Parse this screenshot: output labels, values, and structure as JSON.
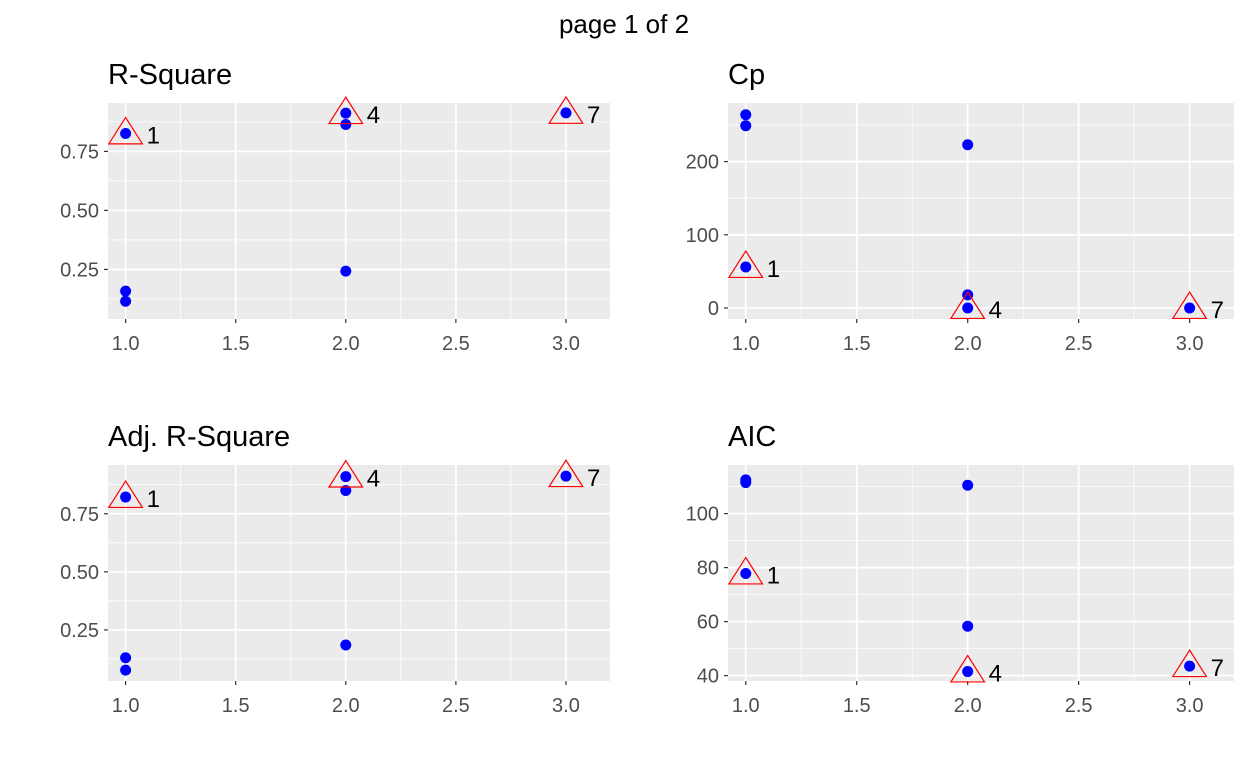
{
  "page_label": "page 1 of 2",
  "colors": {
    "panel_background": "#ebebeb",
    "grid": "#ffffff",
    "point": "#0000ff",
    "marker": "#ff0000",
    "text": "#000000",
    "tick_text": "#4d4d4d"
  },
  "chart_data": [
    {
      "type": "scatter",
      "title": "R-Square",
      "xlabel": "",
      "ylabel": "",
      "xlim": [
        0.92,
        3.2
      ],
      "ylim": [
        0.04,
        0.955
      ],
      "xticks": [
        1.0,
        1.5,
        2.0,
        2.5,
        3.0
      ],
      "xtick_labels": [
        "1.0",
        "1.5",
        "2.0",
        "2.5",
        "3.0"
      ],
      "yticks": [
        0.25,
        0.5,
        0.75
      ],
      "ytick_labels": [
        "0.25",
        "0.50",
        "0.75"
      ],
      "grid": true,
      "points": [
        [
          1,
          0.826
        ],
        [
          1,
          0.158
        ],
        [
          1,
          0.115
        ],
        [
          2,
          0.912
        ],
        [
          2,
          0.864
        ],
        [
          2,
          0.243
        ],
        [
          3,
          0.913
        ]
      ],
      "highlights": [
        {
          "x": 1,
          "y": 0.826,
          "label": "1"
        },
        {
          "x": 2,
          "y": 0.912,
          "label": "4"
        },
        {
          "x": 3,
          "y": 0.913,
          "label": "7"
        }
      ]
    },
    {
      "type": "scatter",
      "title": "Cp",
      "xlabel": "",
      "ylabel": "",
      "xlim": [
        0.92,
        3.2
      ],
      "ylim": [
        -15,
        280
      ],
      "xticks": [
        1.0,
        1.5,
        2.0,
        2.5,
        3.0
      ],
      "xtick_labels": [
        "1.0",
        "1.5",
        "2.0",
        "2.5",
        "3.0"
      ],
      "yticks": [
        0,
        100,
        200
      ],
      "ytick_labels": [
        "0",
        "100",
        "200"
      ],
      "grid": true,
      "points": [
        [
          1,
          264
        ],
        [
          1,
          249
        ],
        [
          1,
          56
        ],
        [
          2,
          223
        ],
        [
          2,
          18
        ],
        [
          2,
          0
        ],
        [
          3,
          0
        ]
      ],
      "highlights": [
        {
          "x": 1,
          "y": 56,
          "label": "1"
        },
        {
          "x": 2,
          "y": 0,
          "label": "4"
        },
        {
          "x": 3,
          "y": 0,
          "label": "7"
        }
      ]
    },
    {
      "type": "scatter",
      "title": "Adj. R-Square",
      "xlabel": "",
      "ylabel": "",
      "xlim": [
        0.92,
        3.2
      ],
      "ylim": [
        0.03,
        0.96
      ],
      "xticks": [
        1.0,
        1.5,
        2.0,
        2.5,
        3.0
      ],
      "xtick_labels": [
        "1.0",
        "1.5",
        "2.0",
        "2.5",
        "3.0"
      ],
      "yticks": [
        0.25,
        0.5,
        0.75
      ],
      "ytick_labels": [
        "0.25",
        "0.50",
        "0.75"
      ],
      "grid": true,
      "points": [
        [
          1,
          0.822
        ],
        [
          1,
          0.13
        ],
        [
          1,
          0.077
        ],
        [
          2,
          0.91
        ],
        [
          2,
          0.85
        ],
        [
          2,
          0.185
        ],
        [
          3,
          0.912
        ]
      ],
      "highlights": [
        {
          "x": 1,
          "y": 0.822,
          "label": "1"
        },
        {
          "x": 2,
          "y": 0.91,
          "label": "4"
        },
        {
          "x": 3,
          "y": 0.912,
          "label": "7"
        }
      ]
    },
    {
      "type": "scatter",
      "title": "AIC",
      "xlabel": "",
      "ylabel": "",
      "xlim": [
        0.92,
        3.2
      ],
      "ylim": [
        38,
        118
      ],
      "xticks": [
        1.0,
        1.5,
        2.0,
        2.5,
        3.0
      ],
      "xtick_labels": [
        "1.0",
        "1.5",
        "2.0",
        "2.5",
        "3.0"
      ],
      "yticks": [
        40,
        60,
        80,
        100
      ],
      "ytick_labels": [
        "40",
        "60",
        "80",
        "100"
      ],
      "grid": true,
      "points": [
        [
          1,
          112.5
        ],
        [
          1,
          111.5
        ],
        [
          1,
          77.8
        ],
        [
          2,
          110.5
        ],
        [
          2,
          58.3
        ],
        [
          2,
          41.5
        ],
        [
          3,
          43.5
        ]
      ],
      "highlights": [
        {
          "x": 1,
          "y": 77.8,
          "label": "1"
        },
        {
          "x": 2,
          "y": 41.5,
          "label": "4"
        },
        {
          "x": 3,
          "y": 43.5,
          "label": "7"
        }
      ]
    }
  ]
}
